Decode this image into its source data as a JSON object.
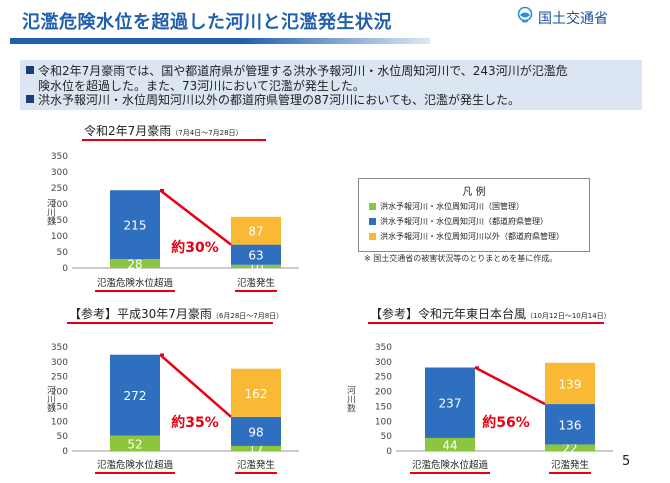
{
  "header": {
    "title": "氾濫危険水位を超過した河川と氾濫発生状況",
    "org": "国土交通省"
  },
  "summary": {
    "bullet1_line1": "令和2年7月豪雨では、国や都道府県が管理する洪水予報河川・水位周知河川で、243河川が氾濫危",
    "bullet1_line2": "険水位を超過した。また、73河川において氾濫が発生した。",
    "bullet2": "洪水予報河川・水位周知河川以外の都道府県管理の87河川においても、氾濫が発生した。"
  },
  "legend": {
    "title": "凡 例",
    "items": [
      {
        "label": "洪水予報河川・水位周知河川（国管理）",
        "color": "#8cc63f"
      },
      {
        "label": "洪水予報河川・水位周知河川（都道府県管理）",
        "color": "#2e6fc0"
      },
      {
        "label": "洪水予報河川・水位周知河川以外（都道府県管理）",
        "color": "#f9b934"
      }
    ]
  },
  "note": "※ 国土交通省の被害状況等のとりまとめを基に作成。",
  "page_number": "5",
  "colors": {
    "national": "#8cc63f",
    "prefectural": "#2e6fc0",
    "other": "#f9b934",
    "accent": "#e60012",
    "title": "#1f5fae"
  },
  "chart_data": [
    {
      "type": "bar",
      "stacked": true,
      "title": "令和2年7月豪雨",
      "subtitle": "（7月4日～7月28日）",
      "ylabel": "河川数",
      "ylim": [
        0,
        350
      ],
      "yticks": [
        0,
        50,
        100,
        150,
        200,
        250,
        300,
        350
      ],
      "categories": [
        "氾濫危険水位超過",
        "氾濫発生"
      ],
      "series": [
        {
          "name": "洪水予報河川・水位周知河川（国管理）",
          "values": [
            28,
            10
          ]
        },
        {
          "name": "洪水予報河川・水位周知河川（都道府県管理）",
          "values": [
            215,
            63
          ]
        },
        {
          "name": "洪水予報河川・水位周知河川以外（都道府県管理）",
          "values": [
            0,
            87
          ]
        }
      ],
      "annotation": "約30%"
    },
    {
      "type": "bar",
      "stacked": true,
      "title": "【参考】平成30年7月豪雨",
      "subtitle": "（6月28日～7月8日）",
      "ylabel": "河川数",
      "ylim": [
        0,
        350
      ],
      "yticks": [
        0,
        50,
        100,
        150,
        200,
        250,
        300,
        350
      ],
      "categories": [
        "氾濫危険水位超過",
        "氾濫発生"
      ],
      "series": [
        {
          "name": "洪水予報河川・水位周知河川（国管理）",
          "values": [
            52,
            17
          ]
        },
        {
          "name": "洪水予報河川・水位周知河川（都道府県管理）",
          "values": [
            272,
            98
          ]
        },
        {
          "name": "洪水予報河川・水位周知河川以外（都道府県管理）",
          "values": [
            0,
            162
          ]
        }
      ],
      "annotation": "約35%"
    },
    {
      "type": "bar",
      "stacked": true,
      "title": "【参考】令和元年東日本台風",
      "subtitle": "（10月12日～10月14日）",
      "ylabel": "河川数",
      "ylim": [
        0,
        350
      ],
      "yticks": [
        0,
        50,
        100,
        150,
        200,
        250,
        300,
        350
      ],
      "categories": [
        "氾濫危険水位超過",
        "氾濫発生"
      ],
      "series": [
        {
          "name": "洪水予報河川・水位周知河川（国管理）",
          "values": [
            44,
            22
          ]
        },
        {
          "name": "洪水予報河川・水位周知河川（都道府県管理）",
          "values": [
            237,
            136
          ]
        },
        {
          "name": "洪水予報河川・水位周知河川以外（都道府県管理）",
          "values": [
            0,
            139
          ]
        }
      ],
      "annotation": "約56%"
    }
  ]
}
